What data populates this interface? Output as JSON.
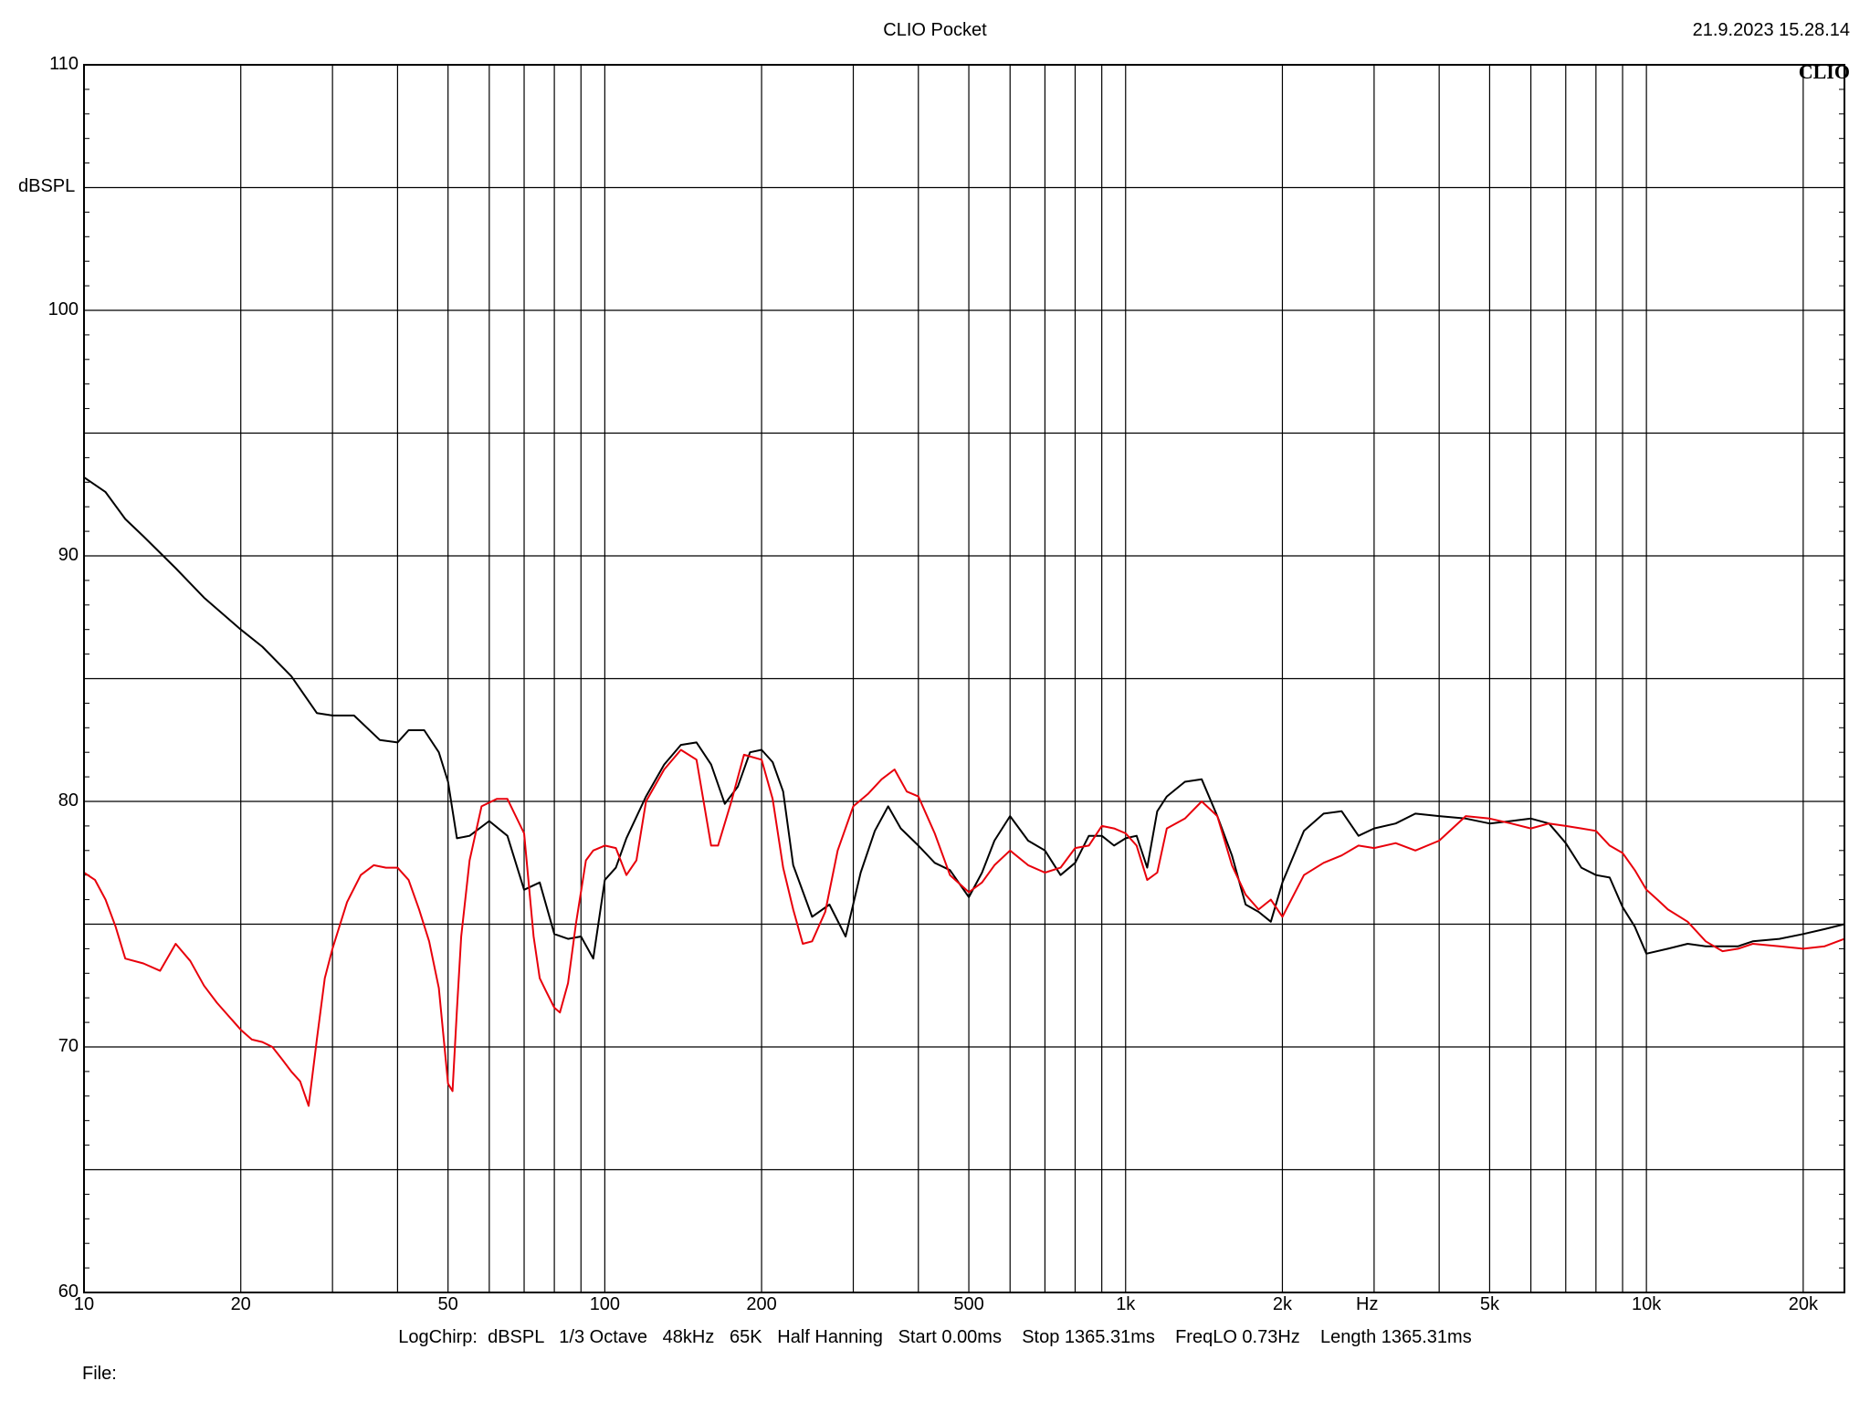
{
  "header": {
    "title": "CLIO Pocket",
    "timestamp": "21.9.2023 15.28.14",
    "logo": "CLIO"
  },
  "footer": {
    "info": "LogChirp:  dBSPL   1/3 Octave   48kHz   65K   Half Hanning   Start 0.00ms    Stop 1365.31ms    FreqLO 0.73Hz    Length 1365.31ms",
    "file_label": "File:"
  },
  "chart_data": {
    "type": "line",
    "x_scale": "log",
    "xlim": [
      10,
      24000
    ],
    "ylim": [
      60,
      110
    ],
    "ylabel": "dBSPL",
    "xunit": "Hz",
    "grid": true,
    "y_ticks": [
      60,
      70,
      80,
      90,
      100,
      110
    ],
    "y_tick_labels": [
      "60",
      "70",
      "80",
      "90",
      "100",
      "110"
    ],
    "x_ticks": [
      10,
      20,
      50,
      100,
      200,
      500,
      1000,
      2000,
      5000,
      10000,
      20000
    ],
    "x_tick_labels": [
      "10",
      "20",
      "50",
      "100",
      "200",
      "500",
      "1k",
      "2k",
      "5k",
      "10k",
      "20k"
    ],
    "series": [
      {
        "color": "#000000",
        "x": [
          10,
          11,
          12,
          13,
          15,
          17,
          20,
          22,
          25,
          28,
          30,
          33,
          37,
          40,
          42,
          45,
          48,
          50,
          52,
          55,
          60,
          65,
          70,
          75,
          80,
          85,
          90,
          95,
          100,
          105,
          110,
          120,
          130,
          140,
          150,
          160,
          170,
          180,
          190,
          200,
          210,
          220,
          230,
          250,
          270,
          290,
          310,
          330,
          350,
          370,
          400,
          430,
          460,
          500,
          530,
          560,
          600,
          650,
          700,
          750,
          800,
          850,
          900,
          950,
          1000,
          1050,
          1100,
          1150,
          1200,
          1300,
          1400,
          1500,
          1600,
          1700,
          1800,
          1900,
          2000,
          2200,
          2400,
          2600,
          2800,
          3000,
          3300,
          3600,
          4000,
          4500,
          5000,
          5500,
          6000,
          6500,
          7000,
          7500,
          8000,
          8500,
          9000,
          9500,
          10000,
          11000,
          12000,
          13000,
          14000,
          15000,
          16000,
          18000,
          20000,
          22000,
          24000
        ],
        "y": [
          93.2,
          92.6,
          91.5,
          90.8,
          89.5,
          88.3,
          87.0,
          86.3,
          85.1,
          83.6,
          83.5,
          83.5,
          82.5,
          82.4,
          82.9,
          82.9,
          82.0,
          80.8,
          78.5,
          78.6,
          79.2,
          78.6,
          76.4,
          76.7,
          74.6,
          74.4,
          74.5,
          73.6,
          76.8,
          77.3,
          78.5,
          80.2,
          81.5,
          82.3,
          82.4,
          81.5,
          79.9,
          80.6,
          82.0,
          82.1,
          81.6,
          80.4,
          77.4,
          75.3,
          75.8,
          74.5,
          77.1,
          78.8,
          79.8,
          78.9,
          78.2,
          77.5,
          77.2,
          76.1,
          77.1,
          78.4,
          79.4,
          78.4,
          78.0,
          77.0,
          77.5,
          78.6,
          78.6,
          78.2,
          78.5,
          78.6,
          77.3,
          79.6,
          80.2,
          80.8,
          80.9,
          79.4,
          77.8,
          75.8,
          75.5,
          75.1,
          76.7,
          78.8,
          79.5,
          79.6,
          78.6,
          78.9,
          79.1,
          79.5,
          79.4,
          79.3,
          79.1,
          79.2,
          79.3,
          79.1,
          78.3,
          77.3,
          77.0,
          76.9,
          75.7,
          74.9,
          73.8,
          74.0,
          74.2,
          74.1,
          74.1,
          74.1,
          74.3,
          74.4,
          74.6,
          74.8,
          75.0
        ]
      },
      {
        "color": "#e8000b",
        "x": [
          10,
          10.5,
          11,
          11.5,
          12,
          13,
          14,
          15,
          16,
          17,
          18,
          20,
          21,
          22,
          23,
          24,
          25,
          26,
          27,
          28,
          29,
          30,
          32,
          34,
          36,
          38,
          40,
          42,
          44,
          46,
          48,
          50,
          51,
          52,
          53,
          55,
          58,
          62,
          65,
          70,
          73,
          75,
          77,
          80,
          82,
          85,
          88,
          92,
          95,
          100,
          105,
          110,
          115,
          120,
          130,
          140,
          150,
          160,
          165,
          175,
          185,
          200,
          210,
          220,
          230,
          240,
          250,
          265,
          280,
          300,
          320,
          340,
          360,
          380,
          400,
          430,
          460,
          500,
          530,
          560,
          600,
          650,
          700,
          750,
          800,
          850,
          900,
          950,
          1000,
          1050,
          1100,
          1150,
          1200,
          1300,
          1400,
          1500,
          1600,
          1700,
          1800,
          1900,
          2000,
          2200,
          2400,
          2600,
          2800,
          3000,
          3300,
          3600,
          4000,
          4500,
          5000,
          5500,
          6000,
          6500,
          7000,
          7500,
          8000,
          8500,
          9000,
          9500,
          10000,
          10500,
          11000,
          12000,
          13000,
          14000,
          15000,
          16000,
          18000,
          20000,
          22000,
          24000
        ],
        "y": [
          77.1,
          76.8,
          76.0,
          74.9,
          73.6,
          73.4,
          73.1,
          74.2,
          73.5,
          72.5,
          71.8,
          70.7,
          70.3,
          70.2,
          70.0,
          69.5,
          69.0,
          68.6,
          67.6,
          70.3,
          72.8,
          74.0,
          75.9,
          77.0,
          77.4,
          77.3,
          77.3,
          76.8,
          75.6,
          74.3,
          72.4,
          68.5,
          68.2,
          71.5,
          74.5,
          77.6,
          79.8,
          80.1,
          80.1,
          78.7,
          74.5,
          72.8,
          72.3,
          71.6,
          71.4,
          72.6,
          75.0,
          77.6,
          78.0,
          78.2,
          78.1,
          77.0,
          77.6,
          80.0,
          81.3,
          82.1,
          81.7,
          78.2,
          78.2,
          80.0,
          81.9,
          81.7,
          80.1,
          77.3,
          75.6,
          74.2,
          74.3,
          75.5,
          78.0,
          79.8,
          80.3,
          80.9,
          81.3,
          80.4,
          80.2,
          78.7,
          77.0,
          76.3,
          76.7,
          77.4,
          78.0,
          77.4,
          77.1,
          77.3,
          78.1,
          78.2,
          79.0,
          78.9,
          78.7,
          78.2,
          76.8,
          77.1,
          78.9,
          79.3,
          80.0,
          79.4,
          77.4,
          76.2,
          75.6,
          76.0,
          75.3,
          77.0,
          77.5,
          77.8,
          78.2,
          78.1,
          78.3,
          78.0,
          78.4,
          79.4,
          79.3,
          79.1,
          78.9,
          79.1,
          79.0,
          78.9,
          78.8,
          78.2,
          77.9,
          77.2,
          76.4,
          76.0,
          75.6,
          75.1,
          74.3,
          73.9,
          74.0,
          74.2,
          74.1,
          74.0,
          74.1,
          74.4
        ]
      }
    ]
  }
}
